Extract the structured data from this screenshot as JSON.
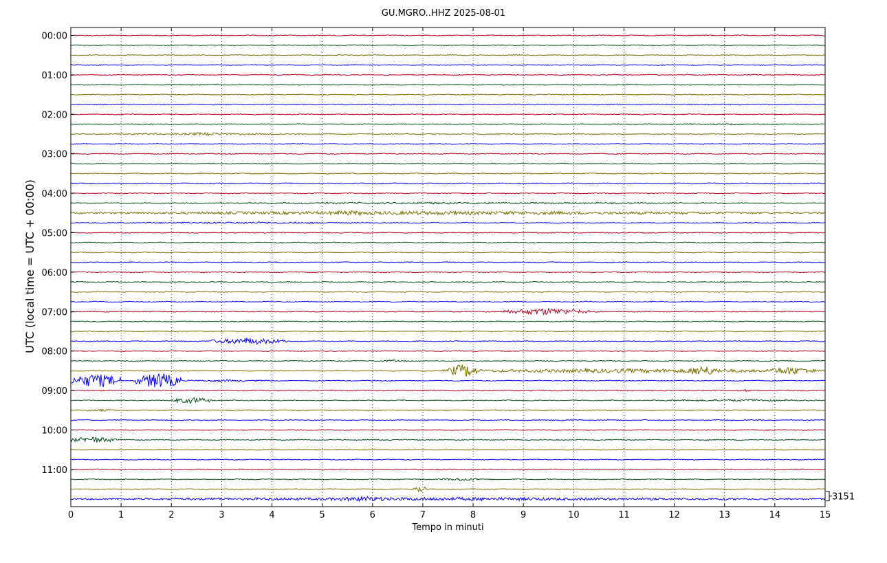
{
  "title": "GU.MGRO..HHZ 2025-08-01",
  "colors": {
    "series": [
      "#b00020",
      "#004d1a",
      "#7a7000",
      "#0000ee"
    ],
    "frame": "#000000",
    "grid": "#000000"
  },
  "chart_data": {
    "type": "line",
    "title": "GU.MGRO..HHZ 2025-08-01",
    "xlabel": "Tempo in minuti",
    "ylabel": "UTC (local time = UTC + 00:00)",
    "xlim": [
      0,
      15
    ],
    "x_ticks": [
      "0",
      "1",
      "2",
      "3",
      "4",
      "5",
      "6",
      "7",
      "8",
      "9",
      "10",
      "11",
      "12",
      "13",
      "14",
      "15"
    ],
    "y_ticks": [
      "00:00",
      "01:00",
      "02:00",
      "03:00",
      "04:00",
      "05:00",
      "06:00",
      "07:00",
      "08:00",
      "09:00",
      "10:00",
      "11:00"
    ],
    "grid": "vertical dotted at each minute",
    "traces_per_hour": 4,
    "trace_count": 48,
    "scale_annotation": "3151",
    "events": [
      {
        "trace": 7,
        "start": 3.9,
        "end": 4.8,
        "amp": 0.25
      },
      {
        "trace": 10,
        "start": 0.0,
        "end": 5.0,
        "amp": 0.4
      },
      {
        "trace": 10,
        "start": 2.2,
        "end": 3.1,
        "amp": 0.9
      },
      {
        "trace": 9,
        "start": 10.5,
        "end": 15.0,
        "amp": 0.3
      },
      {
        "trace": 15,
        "start": 7.1,
        "end": 8.0,
        "amp": 0.2
      },
      {
        "trace": 16,
        "start": 3.2,
        "end": 3.5,
        "amp": 0.3
      },
      {
        "trace": 17,
        "start": 0.0,
        "end": 15.0,
        "amp": 0.4
      },
      {
        "trace": 18,
        "start": 0.0,
        "end": 15.0,
        "amp": 0.9
      },
      {
        "trace": 18,
        "start": 4.8,
        "end": 6.2,
        "amp": 1.2
      },
      {
        "trace": 19,
        "start": 0.0,
        "end": 7.0,
        "amp": 0.4
      },
      {
        "trace": 20,
        "start": 8.5,
        "end": 10.5,
        "amp": 0.25
      },
      {
        "trace": 25,
        "start": 12.3,
        "end": 13.6,
        "amp": 0.25
      },
      {
        "trace": 28,
        "start": 8.6,
        "end": 10.3,
        "amp": 1.7
      },
      {
        "trace": 31,
        "start": 2.8,
        "end": 4.3,
        "amp": 1.6
      },
      {
        "trace": 33,
        "start": 6.1,
        "end": 6.7,
        "amp": 0.5
      },
      {
        "trace": 33,
        "start": 13.7,
        "end": 14.4,
        "amp": 0.3
      },
      {
        "trace": 34,
        "start": 7.4,
        "end": 15.0,
        "amp": 1.0
      },
      {
        "trace": 34,
        "start": 7.5,
        "end": 8.1,
        "amp": 3.5
      },
      {
        "trace": 34,
        "start": 12.2,
        "end": 12.9,
        "amp": 2.6
      },
      {
        "trace": 34,
        "start": 13.8,
        "end": 14.8,
        "amp": 2.0
      },
      {
        "trace": 35,
        "start": 0.0,
        "end": 1.0,
        "amp": 3.5
      },
      {
        "trace": 35,
        "start": 1.3,
        "end": 2.2,
        "amp": 4.0
      },
      {
        "trace": 35,
        "start": 2.2,
        "end": 4.0,
        "amp": 0.5
      },
      {
        "trace": 36,
        "start": 13.4,
        "end": 13.5,
        "amp": 0.8
      },
      {
        "trace": 37,
        "start": 2.0,
        "end": 2.8,
        "amp": 1.5
      },
      {
        "trace": 37,
        "start": 11.5,
        "end": 15.0,
        "amp": 0.5
      },
      {
        "trace": 38,
        "start": 0.2,
        "end": 1.0,
        "amp": 0.5
      },
      {
        "trace": 41,
        "start": 0.0,
        "end": 0.9,
        "amp": 1.6
      },
      {
        "trace": 45,
        "start": 7.3,
        "end": 8.2,
        "amp": 0.7
      },
      {
        "trace": 45,
        "start": 6.8,
        "end": 7.0,
        "amp": 0.3
      },
      {
        "trace": 46,
        "start": 6.8,
        "end": 7.1,
        "amp": 1.8
      },
      {
        "trace": 47,
        "start": 0.0,
        "end": 15.0,
        "amp": 0.8
      },
      {
        "trace": 47,
        "start": 5.2,
        "end": 6.5,
        "amp": 1.3
      }
    ]
  }
}
